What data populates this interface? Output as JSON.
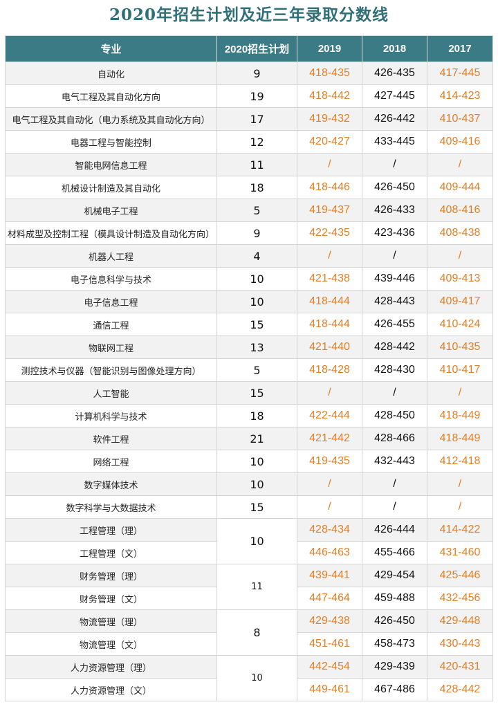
{
  "title": "2020年招生计划及近三年录取分数线",
  "headers": [
    "专业",
    "2020招生计划",
    "2019",
    "2018",
    "2017"
  ],
  "rows": [
    {
      "major": "自动化",
      "plan": "9",
      "y2019": "418-435",
      "y2018": "426-435",
      "y2017": "417-445"
    },
    {
      "major": "电气工程及其自动化方向",
      "plan": "19",
      "y2019": "418-442",
      "y2018": "427-445",
      "y2017": "414-423"
    },
    {
      "major": "电气工程及其自动化（电力系统及其自动化方向）",
      "plan": "17",
      "y2019": "419-432",
      "y2018": "426-442",
      "y2017": "410-437"
    },
    {
      "major": "电器工程与智能控制",
      "plan": "12",
      "y2019": "420-427",
      "y2018": "433-445",
      "y2017": "409-416"
    },
    {
      "major": "智能电网信息工程",
      "plan": "11",
      "y2019": "/",
      "y2018": "/",
      "y2017": "/"
    },
    {
      "major": "机械设计制造及其自动化",
      "plan": "18",
      "y2019": "418-446",
      "y2018": "426-450",
      "y2017": "409-444"
    },
    {
      "major": "机械电子工程",
      "plan": "5",
      "y2019": "419-437",
      "y2018": "426-433",
      "y2017": "408-416"
    },
    {
      "major": "材料成型及控制工程（模具设计制造及自动化方向）",
      "plan": "9",
      "y2019": "422-435",
      "y2018": "423-436",
      "y2017": "408-438"
    },
    {
      "major": "机器人工程",
      "plan": "4",
      "y2019": "/",
      "y2018": "/",
      "y2017": "/"
    },
    {
      "major": "电子信息科学与技术",
      "plan": "10",
      "y2019": "421-438",
      "y2018": "439-446",
      "y2017": "409-413"
    },
    {
      "major": "电子信息工程",
      "plan": "10",
      "y2019": "418-444",
      "y2018": "428-443",
      "y2017": "409-417"
    },
    {
      "major": "通信工程",
      "plan": "15",
      "y2019": "418-444",
      "y2018": "426-455",
      "y2017": "410-424"
    },
    {
      "major": "物联网工程",
      "plan": "13",
      "y2019": "421-440",
      "y2018": "428-442",
      "y2017": "410-435"
    },
    {
      "major": "测控技术与仪器（智能识别与图像处理方向）",
      "plan": "5",
      "y2019": "418-428",
      "y2018": "428-430",
      "y2017": "410-417"
    },
    {
      "major": "人工智能",
      "plan": "15",
      "y2019": "/",
      "y2018": "/",
      "y2017": "/"
    },
    {
      "major": "计算机科学与技术",
      "plan": "18",
      "y2019": "422-444",
      "y2018": "428-450",
      "y2017": "418-449"
    },
    {
      "major": "软件工程",
      "plan": "21",
      "y2019": "421-442",
      "y2018": "428-466",
      "y2017": "418-449"
    },
    {
      "major": "网络工程",
      "plan": "10",
      "y2019": "419-435",
      "y2018": "432-443",
      "y2017": "412-418"
    },
    {
      "major": "数字媒体技术",
      "plan": "10",
      "y2019": "/",
      "y2018": "/",
      "y2017": "/"
    },
    {
      "major": "数字科学与大数据技术",
      "plan": "15",
      "y2019": "/",
      "y2018": "/",
      "y2017": "/"
    },
    {
      "major": "工程管理（理）",
      "plan": "10",
      "y2019": "428-434",
      "y2018": "426-444",
      "y2017": "414-422"
    },
    {
      "major": "工程管理（文）",
      "plan": "",
      "y2019": "446-463",
      "y2018": "455-466",
      "y2017": "431-460"
    },
    {
      "major": "财务管理（理）",
      "plan": "11",
      "y2019": "439-441",
      "y2018": "429-454",
      "y2017": "425-446"
    },
    {
      "major": "财务管理（文）",
      "plan": "",
      "y2019": "447-464",
      "y2018": "459-488",
      "y2017": "432-456"
    },
    {
      "major": "物流管理（理）",
      "plan": "8",
      "y2019": "429-438",
      "y2018": "426-450",
      "y2017": "429-448"
    },
    {
      "major": "物流管理（文）",
      "plan": "",
      "y2019": "451-461",
      "y2018": "458-473",
      "y2017": "430-443"
    },
    {
      "major": "人力资源管理（理）",
      "plan": "10",
      "y2019": "442-454",
      "y2018": "429-439",
      "y2017": "420-431"
    },
    {
      "major": "人力资源管理（文）",
      "plan": "",
      "y2019": "449-461",
      "y2018": "467-486",
      "y2017": "428-442"
    }
  ],
  "colors": {
    "header_bg": "#3b7b86",
    "title": "#2f6f78",
    "score_2019": "#e67e22",
    "score_2018": "#111111",
    "score_2017": "#e67e22",
    "stripe": "#f2f2f2"
  }
}
